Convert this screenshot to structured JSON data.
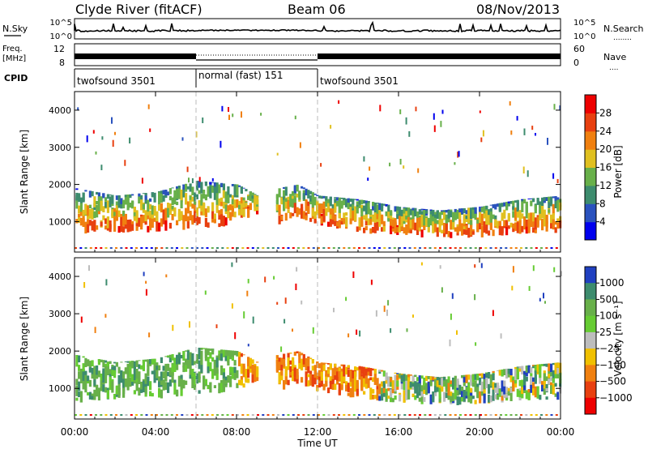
{
  "header": {
    "station": "Clyde River (fitACF)",
    "beam": "Beam 06",
    "date": "08/Nov/2013"
  },
  "strips": {
    "nsky_label": "N.Sky",
    "nsearch_label": "N.Search",
    "nsearch_key": "........",
    "count_ticks": [
      "10^5",
      "10^0"
    ],
    "freq_label_line1": "Freq.",
    "freq_label_line2": "[MHz]",
    "freq_ticks": [
      "12",
      "8"
    ],
    "nave_label": "Nave",
    "nave_key": "....",
    "nave_ticks": [
      "60",
      "0"
    ],
    "cpid_label": "CPID",
    "cpid_segments": [
      {
        "label": "twofsound 3501",
        "start_hour": 0,
        "end_hour": 6
      },
      {
        "label": "normal (fast) 151",
        "start_hour": 6,
        "end_hour": 12
      },
      {
        "label": "twofsound 3501",
        "start_hour": 12,
        "end_hour": 24
      }
    ]
  },
  "chart_data": [
    {
      "type": "heatmap",
      "panel": "power",
      "xlabel": "Time UT",
      "ylabel": "Slant Range [km]",
      "xlim": [
        0,
        24
      ],
      "ylim": [
        180,
        4500
      ],
      "x_ticks": [
        {
          "value": 0,
          "label": "00:00"
        },
        {
          "value": 4,
          "label": "04:00"
        },
        {
          "value": 8,
          "label": "08:00"
        },
        {
          "value": 12,
          "label": "12:00"
        },
        {
          "value": 16,
          "label": "16:00"
        },
        {
          "value": 20,
          "label": "20:00"
        },
        {
          "value": 24,
          "label": "00:00"
        }
      ],
      "y_ticks": [
        1000,
        2000,
        3000,
        4000
      ],
      "colorbar": {
        "label": "Power [dB]",
        "ticks": [
          "4",
          "8",
          "12",
          "16",
          "20",
          "24",
          "28"
        ],
        "colors": [
          "#0000ee",
          "#2a52be",
          "#3d8c6e",
          "#68b04a",
          "#e0c020",
          "#f08010",
          "#e84010",
          "#ee0000"
        ]
      },
      "cpid_change_hours": [
        6,
        12
      ],
      "echo_band": {
        "hours": [
          0,
          2,
          4,
          6,
          8,
          9,
          10,
          11,
          12,
          14,
          16,
          18,
          20,
          22,
          24
        ],
        "lower_km": [
          600,
          700,
          700,
          800,
          900,
          1200,
          900,
          1100,
          900,
          700,
          600,
          550,
          550,
          650,
          700
        ],
        "upper_km": [
          1900,
          1700,
          1800,
          2100,
          2000,
          1700,
          1900,
          2000,
          1700,
          1600,
          1400,
          1300,
          1400,
          1600,
          1700
        ]
      }
    },
    {
      "type": "heatmap",
      "panel": "velocity",
      "xlabel": "Time UT",
      "ylabel": "Slant Range [km]",
      "xlim": [
        0,
        24
      ],
      "ylim": [
        180,
        4500
      ],
      "y_ticks": [
        1000,
        2000,
        3000,
        4000
      ],
      "colorbar": {
        "label": "Velocity [m s⁻¹]",
        "ticks": [
          "1000",
          "500",
          "100",
          "25",
          "−25",
          "−100",
          "−500",
          "−1000"
        ],
        "colors": [
          "#2040c0",
          "#3d8c6e",
          "#68b04a",
          "#66cc33",
          "#bdbdbd",
          "#f0c000",
          "#f08010",
          "#e84010",
          "#ee0000"
        ]
      },
      "cpid_change_hours": [
        6,
        12
      ],
      "echo_band": {
        "hours": [
          0,
          2,
          4,
          6,
          8,
          9,
          10,
          11,
          12,
          14,
          16,
          18,
          20,
          22,
          24
        ],
        "lower_km": [
          600,
          700,
          700,
          800,
          900,
          1200,
          900,
          1100,
          900,
          700,
          600,
          550,
          550,
          650,
          700
        ],
        "upper_km": [
          1900,
          1700,
          1800,
          2100,
          2000,
          1700,
          1900,
          2000,
          1700,
          1600,
          1400,
          1300,
          1400,
          1600,
          1700
        ]
      }
    }
  ]
}
